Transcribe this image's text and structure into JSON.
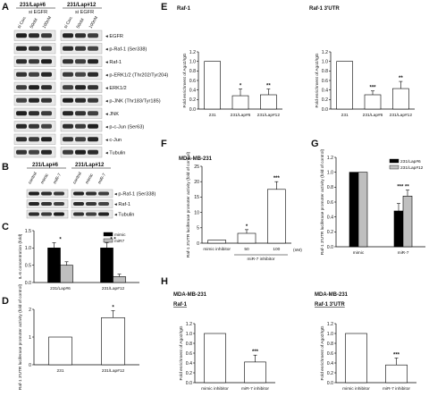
{
  "panelA": {
    "letter": "A",
    "groups": [
      "231/Lap#6",
      "231/Lap#12"
    ],
    "si_label": "si EGFR",
    "lanes": [
      "si Con.",
      "50nM",
      "100nM"
    ],
    "bands": [
      "EGFR",
      "p-Raf-1 (Ser338)",
      "Raf-1",
      "p-ERK1/2 (Thr202/Tyr204)",
      "ERK1/2",
      "p-JNK (Thr183/Tyr185)",
      "JNK",
      "p-c-Jun (Ser63)",
      "c-Jun",
      "Tubulin"
    ]
  },
  "panelB": {
    "letter": "B",
    "groups": [
      "231/Lap#6",
      "231/Lap#12"
    ],
    "lanes": [
      "control",
      "mimic",
      "miR-7"
    ],
    "bands": [
      "p-Raf-1 (Ser338)",
      "Raf-1",
      "Tubulin"
    ]
  },
  "panelC": {
    "letter": "C",
    "chart_data": {
      "type": "bar",
      "categories": [
        "231/Lap#6",
        "231/Lap#12"
      ],
      "ylabel": "IL-6 concentration (fold)",
      "ylim": [
        0,
        1.5
      ],
      "yticks": [
        "0.0",
        "0.5",
        "1.0",
        "1.5"
      ],
      "series": [
        {
          "name": "mimic",
          "values": [
            1.0,
            1.0
          ],
          "errors": [
            0.15,
            0.15
          ],
          "color": "#000000"
        },
        {
          "name": "miR7",
          "values": [
            0.5,
            0.17
          ],
          "errors": [
            0.1,
            0.07
          ],
          "color": "#bfbfbf"
        }
      ],
      "sig": [
        "*",
        "* *"
      ],
      "legend": "top-right"
    }
  },
  "panelD": {
    "letter": "D",
    "chart_data": {
      "type": "bar",
      "categories": [
        "231",
        "231/Lap#12"
      ],
      "values": [
        1.0,
        1.7
      ],
      "errors": [
        0,
        0.25
      ],
      "ylabel": "Raf-1 3'UTR luciferase promoter activity (fold of control)",
      "ylim": [
        0,
        2
      ],
      "yticks": [
        "0",
        "1",
        "2"
      ],
      "sig": [
        "",
        "*"
      ]
    }
  },
  "panelE": {
    "letter": "E",
    "charts": [
      {
        "title": "Raf-1",
        "categories": [
          "231",
          "231/Lap#6",
          "231/Lap#12"
        ],
        "values": [
          1.0,
          0.28,
          0.3
        ],
        "errors": [
          0,
          0.14,
          0.12
        ],
        "ylabel": "Fold enrichment of Ago2/IgG",
        "ylim": [
          0,
          1.2
        ],
        "yticks": [
          "0.0",
          "0.2",
          "0.4",
          "0.6",
          "0.8",
          "1.0",
          "1.2"
        ],
        "sig": [
          "",
          "*",
          "**"
        ]
      },
      {
        "title": "Raf-1 3'UTR",
        "categories": [
          "231",
          "231/Lap#6",
          "231/Lap#12"
        ],
        "values": [
          1.0,
          0.3,
          0.43
        ],
        "errors": [
          0,
          0.08,
          0.15
        ],
        "ylabel": "Fold enrichment of Ago2/IgG",
        "ylim": [
          0,
          1.2
        ],
        "yticks": [
          "0.0",
          "0.2",
          "0.4",
          "0.6",
          "0.8",
          "1.0",
          "1.2"
        ],
        "sig": [
          "",
          "***",
          "**"
        ]
      }
    ]
  },
  "panelF": {
    "letter": "F",
    "title": "MDA-MB-231",
    "chart_data": {
      "type": "line",
      "categories": [
        "mimic inhibitor",
        "50",
        "100"
      ],
      "values": [
        1.0,
        3.2,
        17.5
      ],
      "errors": [
        0,
        1.2,
        2.5
      ],
      "ylabel": "Raf-1 3'UTR luciferase promoter activity (fold of control)",
      "ylim": [
        0,
        25
      ],
      "yticks": [
        "0",
        "5",
        "10",
        "15",
        "20",
        "25"
      ],
      "sig": [
        "",
        "*",
        "***"
      ],
      "group_label": "miR-7 inhibitor",
      "unit": "(nM)"
    }
  },
  "panelG": {
    "letter": "G",
    "chart_data": {
      "type": "bar",
      "categories": [
        "mimic",
        "miR-7"
      ],
      "ylabel": "Raf-1 3'UTR luciferase promoter activity (fold of control)",
      "ylim": [
        0,
        1.2
      ],
      "yticks": [
        "0.0",
        "0.2",
        "0.4",
        "0.6",
        "0.8",
        "1.0",
        "1.2"
      ],
      "series": [
        {
          "name": "231/Lap#6",
          "values": [
            1.0,
            0.48
          ],
          "errors": [
            0,
            0.1
          ],
          "color": "#000000"
        },
        {
          "name": "231/Lap#12",
          "values": [
            1.0,
            0.68
          ],
          "errors": [
            0,
            0.08
          ],
          "color": "#bfbfbf"
        }
      ],
      "sig": [
        "",
        "*** **"
      ],
      "legend": "top-right"
    }
  },
  "panelH": {
    "letter": "H",
    "charts": [
      {
        "title": "MDA-MB-231",
        "subtitle": "Raf-1",
        "categories": [
          "mimic inhibitor",
          "miR-7 inhibitor"
        ],
        "values": [
          1.0,
          0.42
        ],
        "errors": [
          0,
          0.14
        ],
        "ylabel": "Fold enrichment of Ago2/IgG",
        "ylim": [
          0,
          1.2
        ],
        "yticks": [
          "0.0",
          "0.2",
          "0.4",
          "0.6",
          "0.8",
          "1.0",
          "1.2"
        ],
        "sig": [
          "",
          "***"
        ]
      },
      {
        "title": "MDA-MB-231",
        "subtitle": "Raf-1 3'UTR",
        "categories": [
          "mimic inhibitor",
          "miR-7 inhibitor"
        ],
        "values": [
          1.0,
          0.36
        ],
        "errors": [
          0,
          0.14
        ],
        "ylabel": "Fold enrichment of Ago2/IgG",
        "ylim": [
          0,
          1.2
        ],
        "yticks": [
          "0.0",
          "0.2",
          "0.4",
          "0.6",
          "0.8",
          "1.0",
          "1.2"
        ],
        "sig": [
          "",
          "***"
        ]
      }
    ]
  }
}
